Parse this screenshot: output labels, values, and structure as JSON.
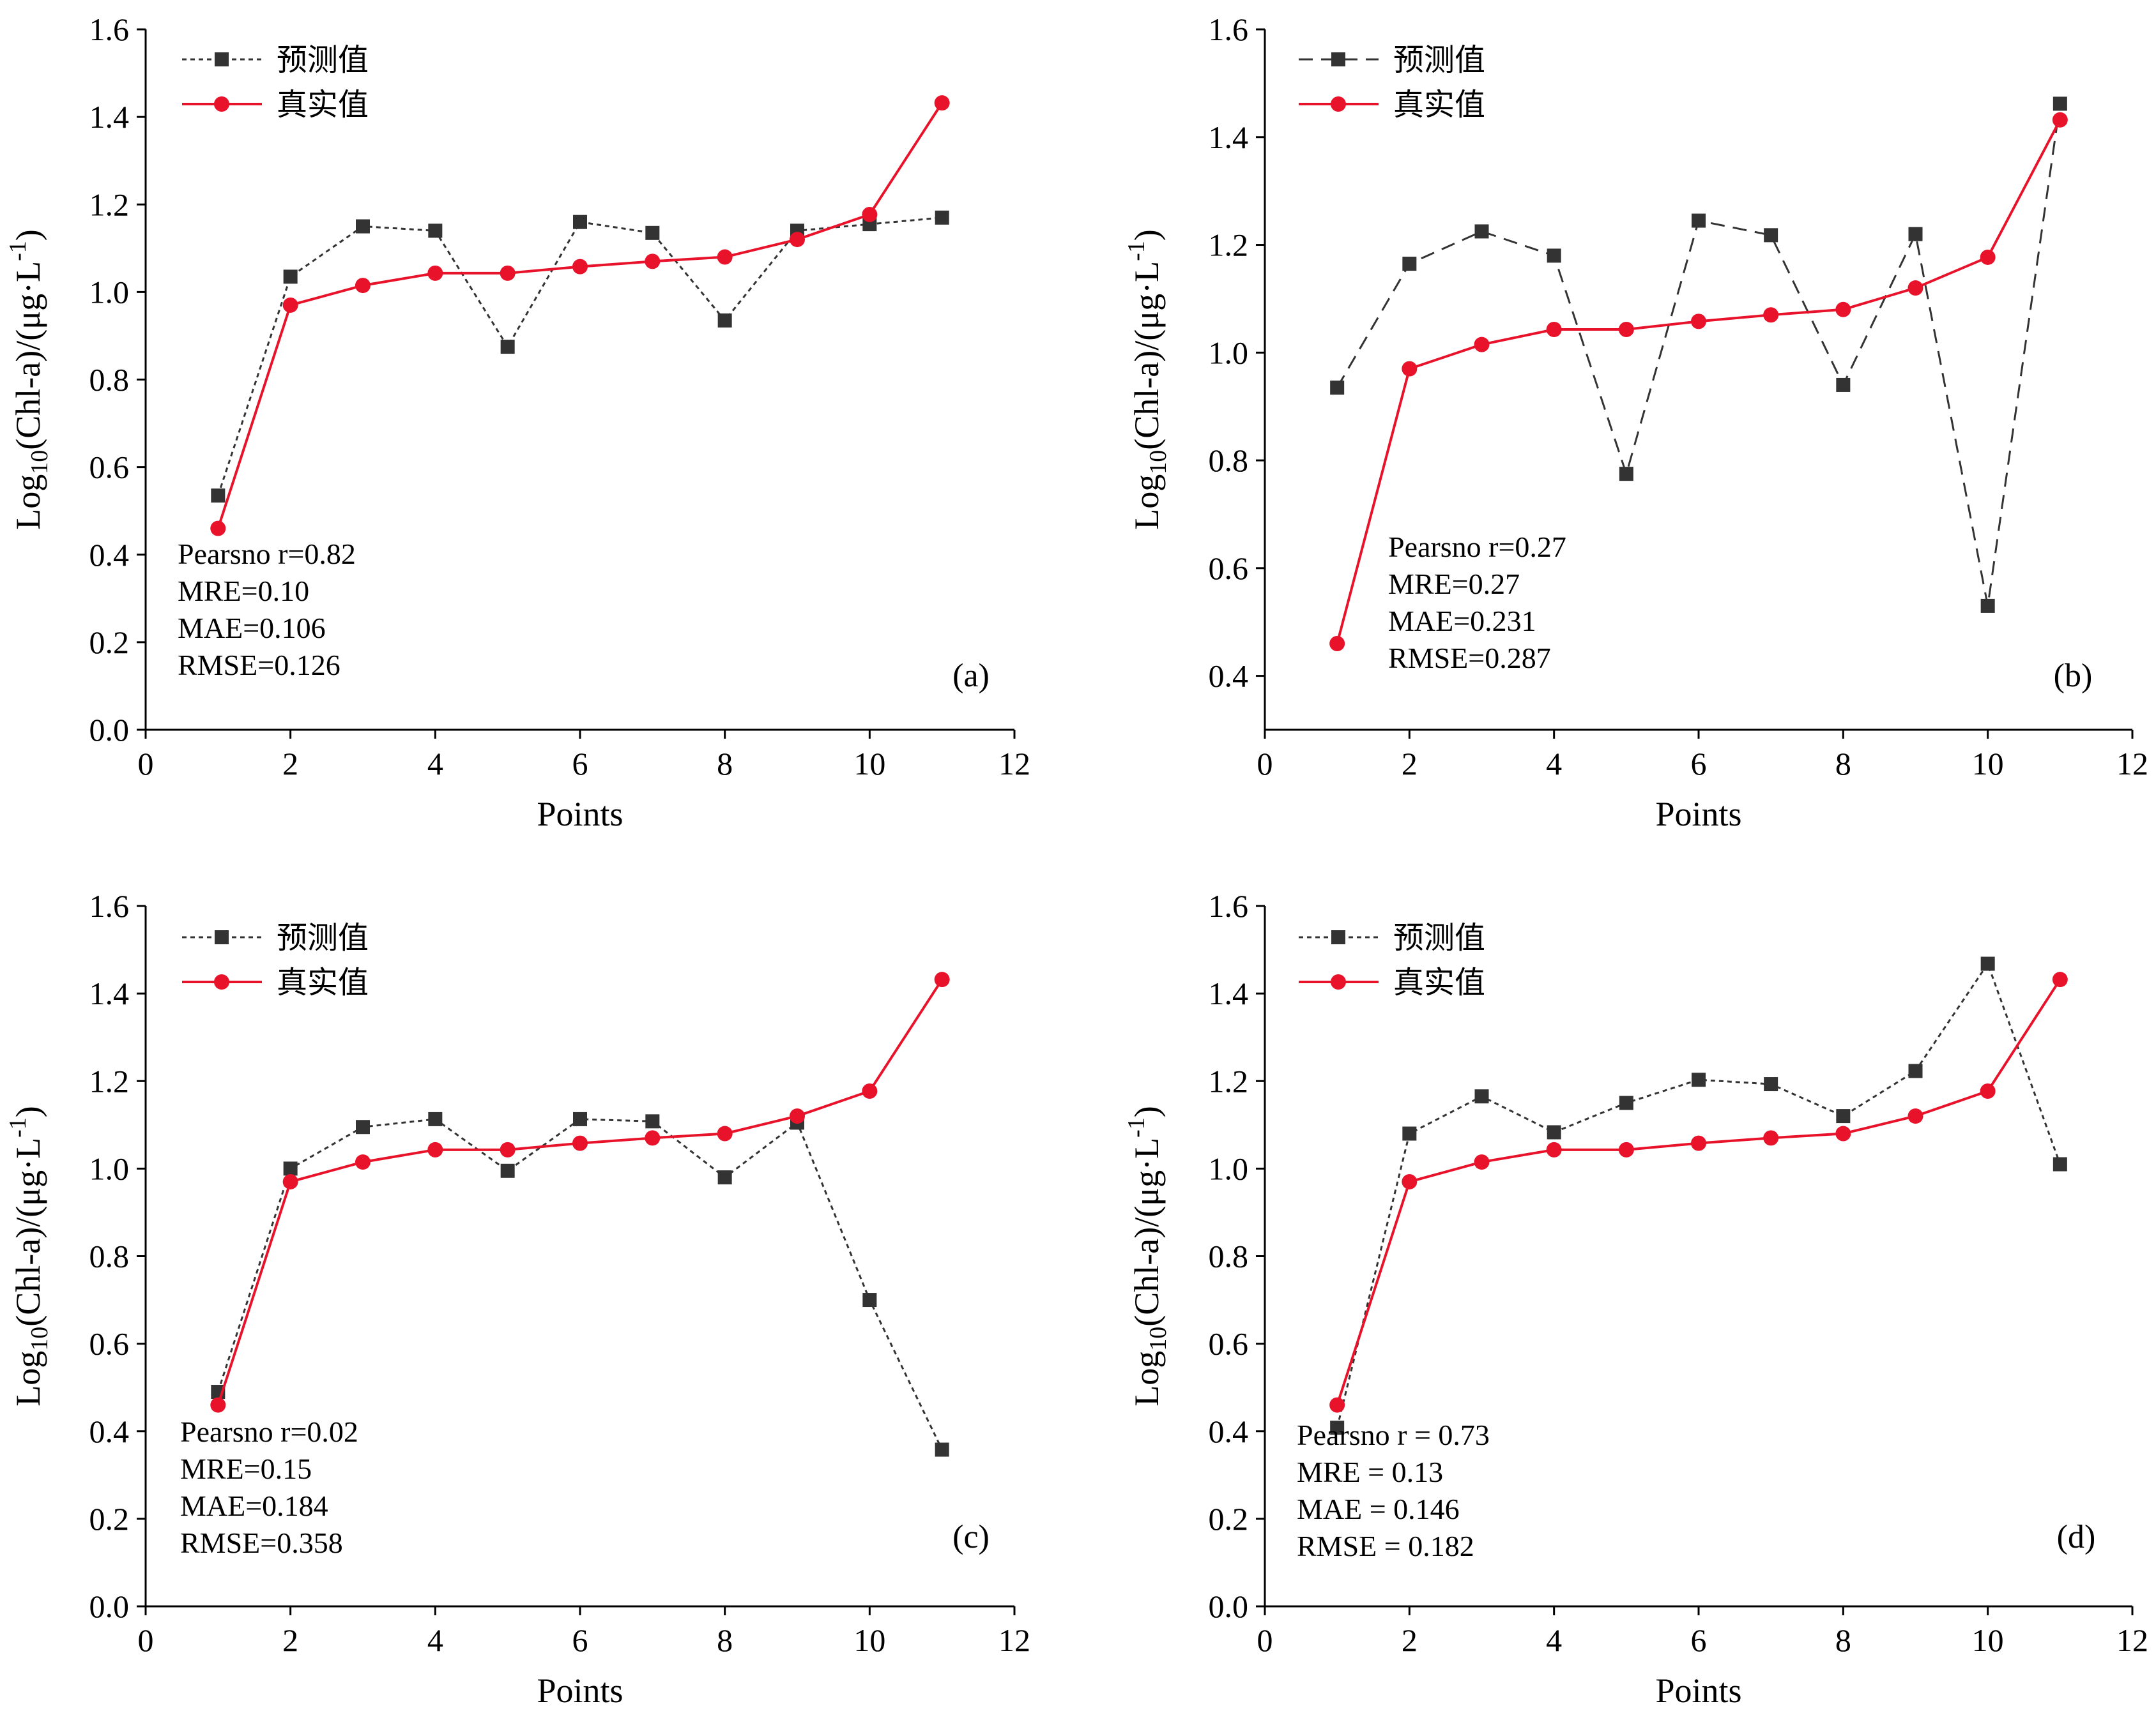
{
  "chart_data": [
    {
      "panel": "(a)",
      "type": "line",
      "xlabel": "Points",
      "ylabel": {
        "prefix": "Log",
        "sub": "10",
        "main": "(Chl-a)/(μg·L",
        "sup": "-1",
        "suffix": ")"
      },
      "xlim": [
        0,
        12
      ],
      "ylim": [
        0.0,
        1.6
      ],
      "xticks": [
        "0",
        "2",
        "4",
        "6",
        "8",
        "10",
        "12"
      ],
      "yticks": [
        "0.0",
        "0.2",
        "0.4",
        "0.6",
        "0.8",
        "1.0",
        "1.2",
        "1.4",
        "1.6"
      ],
      "x": [
        1,
        2,
        3,
        4,
        5,
        6,
        7,
        8,
        9,
        10,
        11
      ],
      "series": [
        {
          "name": "预测值",
          "color": "#333333",
          "marker": "square",
          "dash": "dotted",
          "values": [
            0.535,
            1.035,
            1.15,
            1.14,
            0.875,
            1.16,
            1.135,
            0.935,
            1.14,
            1.155,
            1.17
          ]
        },
        {
          "name": "真实值",
          "color": "#e8132a",
          "marker": "circle",
          "dash": "solid",
          "values": [
            0.46,
            0.97,
            1.015,
            1.043,
            1.043,
            1.058,
            1.07,
            1.08,
            1.12,
            1.177,
            1.432
          ]
        }
      ],
      "stats": [
        "Pearsno r=0.82",
        "MRE=0.10",
        "MAE=0.106",
        "RMSE=0.126"
      ]
    },
    {
      "panel": "(b)",
      "type": "line",
      "xlabel": "Points",
      "ylabel": {
        "prefix": "Log",
        "sub": "10",
        "main": "(Chl-a)/(μg·L",
        "sup": "-1",
        "suffix": ")"
      },
      "xlim": [
        0,
        12
      ],
      "ylim": [
        0.3,
        1.6
      ],
      "xticks": [
        "0",
        "2",
        "4",
        "6",
        "8",
        "10",
        "12"
      ],
      "yticks": [
        "0.4",
        "0.6",
        "0.8",
        "1.0",
        "1.2",
        "1.4",
        "1.6"
      ],
      "x": [
        1,
        2,
        3,
        4,
        5,
        6,
        7,
        8,
        9,
        10,
        11
      ],
      "series": [
        {
          "name": "预测值",
          "color": "#333333",
          "marker": "square",
          "dash": "dashed",
          "values": [
            0.935,
            1.165,
            1.225,
            1.18,
            0.775,
            1.245,
            1.218,
            0.94,
            1.22,
            0.53,
            1.462
          ]
        },
        {
          "name": "真实值",
          "color": "#e8132a",
          "marker": "circle",
          "dash": "solid",
          "values": [
            0.46,
            0.97,
            1.015,
            1.043,
            1.043,
            1.058,
            1.07,
            1.08,
            1.12,
            1.177,
            1.432
          ]
        }
      ],
      "stats": [
        "Pearsno r=0.27",
        "MRE=0.27",
        "MAE=0.231",
        "RMSE=0.287"
      ]
    },
    {
      "panel": "(c)",
      "type": "line",
      "xlabel": "Points",
      "ylabel": {
        "prefix": "Log",
        "sub": "10",
        "main": "(Chl-a)/(μg·L",
        "sup": "-1",
        "suffix": ")"
      },
      "xlim": [
        0,
        12
      ],
      "ylim": [
        0.0,
        1.6
      ],
      "xticks": [
        "0",
        "2",
        "4",
        "6",
        "8",
        "10",
        "12"
      ],
      "yticks": [
        "0.0",
        "0.2",
        "0.4",
        "0.6",
        "0.8",
        "1.0",
        "1.2",
        "1.4",
        "1.6"
      ],
      "x": [
        1,
        2,
        3,
        4,
        5,
        6,
        7,
        8,
        9,
        10,
        11
      ],
      "series": [
        {
          "name": "预测值",
          "color": "#333333",
          "marker": "square",
          "dash": "dotted",
          "values": [
            0.49,
            1.0,
            1.095,
            1.113,
            0.995,
            1.113,
            1.108,
            0.98,
            1.105,
            0.7,
            0.358
          ]
        },
        {
          "name": "真实值",
          "color": "#e8132a",
          "marker": "circle",
          "dash": "solid",
          "values": [
            0.46,
            0.97,
            1.015,
            1.043,
            1.043,
            1.058,
            1.07,
            1.08,
            1.12,
            1.177,
            1.432
          ]
        }
      ],
      "stats": [
        "Pearsno r=0.02",
        "MRE=0.15",
        "MAE=0.184",
        "RMSE=0.358"
      ]
    },
    {
      "panel": "(d)",
      "type": "line",
      "xlabel": "Points",
      "ylabel": {
        "prefix": "Log",
        "sub": "10",
        "main": "(Chl-a)/(μg·L",
        "sup": "-1",
        "suffix": ")"
      },
      "xlim": [
        0,
        12
      ],
      "ylim": [
        0.0,
        1.6
      ],
      "xticks": [
        "0",
        "2",
        "4",
        "6",
        "8",
        "10",
        "12"
      ],
      "yticks": [
        "0.0",
        "0.2",
        "0.4",
        "0.6",
        "0.8",
        "1.0",
        "1.2",
        "1.4",
        "1.6"
      ],
      "x": [
        1,
        2,
        3,
        4,
        5,
        6,
        7,
        8,
        9,
        10,
        11
      ],
      "series": [
        {
          "name": "预测值",
          "color": "#333333",
          "marker": "square",
          "dash": "dotted",
          "values": [
            0.408,
            1.08,
            1.165,
            1.083,
            1.15,
            1.203,
            1.193,
            1.12,
            1.223,
            1.468,
            1.01
          ]
        },
        {
          "name": "真实值",
          "color": "#e8132a",
          "marker": "circle",
          "dash": "solid",
          "values": [
            0.46,
            0.97,
            1.015,
            1.043,
            1.043,
            1.058,
            1.07,
            1.08,
            1.12,
            1.177,
            1.432
          ]
        }
      ],
      "stats": [
        "Pearsno r = 0.73",
        "MRE = 0.13",
        "MAE = 0.146",
        "RMSE = 0.182"
      ]
    }
  ]
}
